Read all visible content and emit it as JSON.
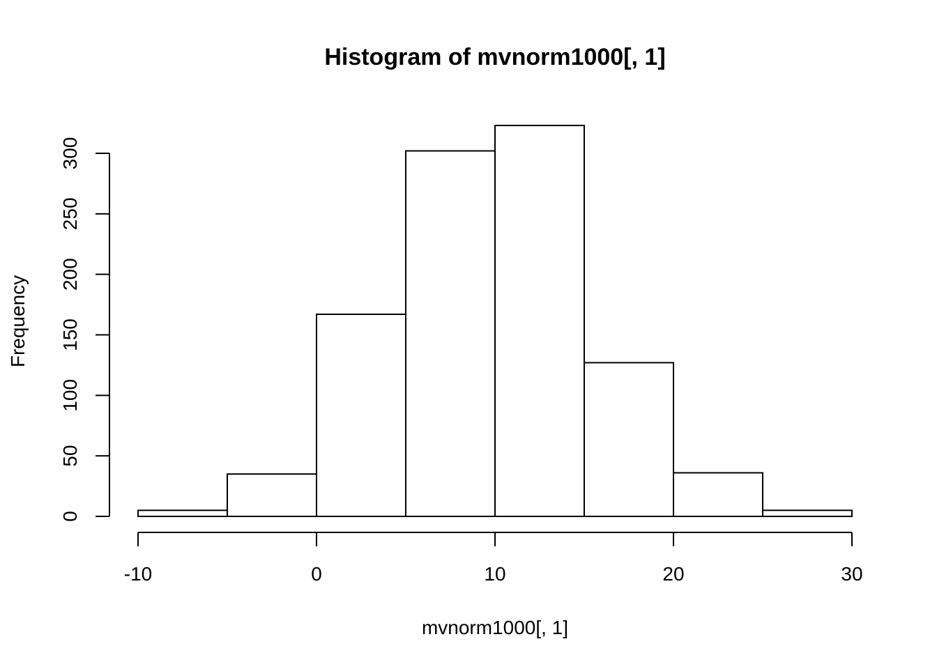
{
  "chart_data": {
    "type": "bar",
    "title": "Histogram of mvnorm1000[, 1]",
    "xlabel": "mvnorm1000[, 1]",
    "ylabel": "Frequency",
    "bins": [
      {
        "from": -10,
        "to": -5,
        "count": 5
      },
      {
        "from": -5,
        "to": 0,
        "count": 35
      },
      {
        "from": 0,
        "to": 5,
        "count": 167
      },
      {
        "from": 5,
        "to": 10,
        "count": 302
      },
      {
        "from": 10,
        "to": 15,
        "count": 323
      },
      {
        "from": 15,
        "to": 20,
        "count": 127
      },
      {
        "from": 20,
        "to": 25,
        "count": 36
      },
      {
        "from": 25,
        "to": 30,
        "count": 5
      }
    ],
    "xlim": [
      -10,
      30
    ],
    "ylim": [
      0,
      300
    ],
    "x_ticks": [
      -10,
      0,
      10,
      20,
      30
    ],
    "x_tick_labels": [
      "-10",
      "0",
      "10",
      "20",
      "30"
    ],
    "y_ticks": [
      0,
      50,
      100,
      150,
      200,
      250,
      300
    ],
    "y_tick_labels": [
      "0",
      "50",
      "100",
      "150",
      "200",
      "250",
      "300"
    ],
    "grid": false,
    "bar_fill": "#ffffff",
    "bar_stroke": "#000000"
  }
}
